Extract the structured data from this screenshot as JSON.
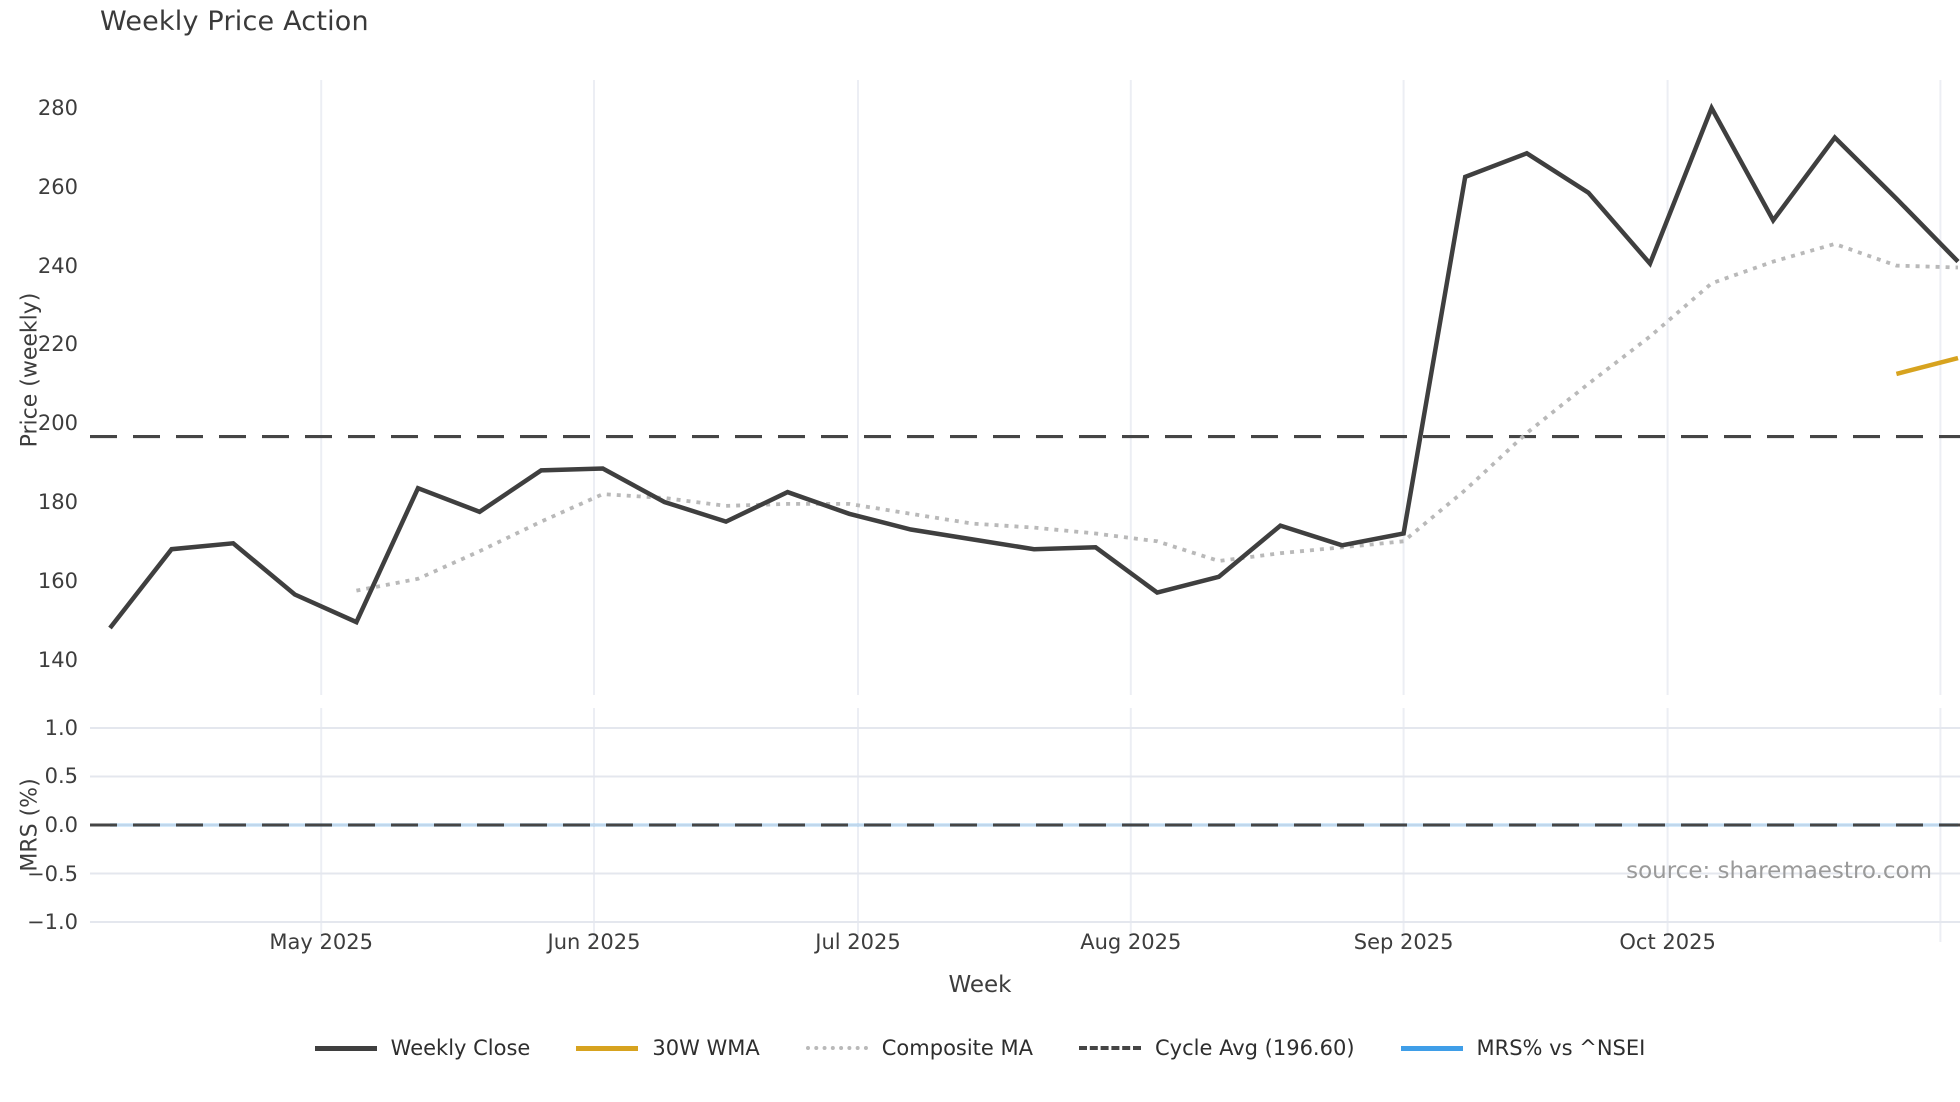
{
  "title": "Weekly Price Action",
  "source_note": "source: sharemaestro.com",
  "colors": {
    "close": "#3f3f3f",
    "wma": "#d7a31f",
    "composite": "#b9b9b9",
    "cycle": "#454545",
    "mrs": "#3f9ee8",
    "grid": "#eceef4",
    "grid_h": "#e4e7ee",
    "text": "#3a3a3a"
  },
  "legend": [
    {
      "label": "Weekly Close",
      "swatch": "solid",
      "color_key": "close"
    },
    {
      "label": "30W WMA",
      "swatch": "solid",
      "color_key": "wma"
    },
    {
      "label": "Composite MA",
      "swatch": "dotted",
      "color_key": "composite"
    },
    {
      "label": "Cycle Avg (196.60)",
      "swatch": "dashed",
      "color_key": "cycle"
    },
    {
      "label": "MRS% vs ^NSEI",
      "swatch": "solid",
      "color_key": "mrs"
    }
  ],
  "chart_data": [
    {
      "type": "line",
      "title": "Weekly Price Action",
      "xlabel": "Week",
      "ylabel": "Price (weekly)",
      "ylim": [
        131,
        287.1
      ],
      "grid": "vertical-months",
      "legend_position": "bottom",
      "ytick_values": [
        140,
        160,
        180,
        200,
        220,
        240,
        260,
        280
      ],
      "ytick_labels": [
        "140",
        "160",
        "180",
        "200",
        "220",
        "240",
        "260",
        "280"
      ],
      "x_months": [
        {
          "label": "May 2025",
          "date": "2025-05-01"
        },
        {
          "label": "Jun 2025",
          "date": "2025-06-01"
        },
        {
          "label": "Jul 2025",
          "date": "2025-07-01"
        },
        {
          "label": "Aug 2025",
          "date": "2025-08-01"
        },
        {
          "label": "Sep 2025",
          "date": "2025-09-01"
        },
        {
          "label": "Oct 2025",
          "date": "2025-10-01"
        },
        {
          "label": "",
          "date": "2025-11-01"
        }
      ],
      "x": [
        "2025-04-07",
        "2025-04-14",
        "2025-04-21",
        "2025-04-28",
        "2025-05-05",
        "2025-05-12",
        "2025-05-19",
        "2025-05-26",
        "2025-06-02",
        "2025-06-09",
        "2025-06-16",
        "2025-06-23",
        "2025-06-30",
        "2025-07-07",
        "2025-07-14",
        "2025-07-21",
        "2025-07-28",
        "2025-08-04",
        "2025-08-11",
        "2025-08-18",
        "2025-08-25",
        "2025-09-01",
        "2025-09-08",
        "2025-09-15",
        "2025-09-22",
        "2025-09-29",
        "2025-10-06",
        "2025-10-13",
        "2025-10-20",
        "2025-10-27",
        "2025-11-03"
      ],
      "series": [
        {
          "name": "Weekly Close",
          "style": "solid",
          "color_key": "close",
          "width": 4.5,
          "values": [
            148,
            168,
            169.5,
            156.5,
            149.5,
            183.5,
            177.5,
            188,
            188.5,
            180,
            175,
            182.5,
            177,
            173,
            170.5,
            168,
            168.5,
            157,
            161,
            174,
            169,
            172,
            262.5,
            268.5,
            258.5,
            240.5,
            280,
            251.5,
            272.5,
            257,
            241
          ]
        },
        {
          "name": "30W WMA",
          "style": "solid",
          "color_key": "wma",
          "width": 4.5,
          "values": [
            null,
            null,
            null,
            null,
            null,
            null,
            null,
            null,
            null,
            null,
            null,
            null,
            null,
            null,
            null,
            null,
            null,
            null,
            null,
            null,
            null,
            null,
            null,
            null,
            null,
            null,
            null,
            null,
            null,
            212.5,
            216.5
          ]
        },
        {
          "name": "Composite MA",
          "style": "dotted",
          "color_key": "composite",
          "width": 3.8,
          "values": [
            null,
            null,
            null,
            null,
            157.5,
            160.5,
            167.5,
            175,
            182,
            181,
            179,
            179.5,
            179.5,
            177,
            174.5,
            173.5,
            172,
            170,
            165,
            167,
            168.5,
            170,
            183,
            197.5,
            210,
            222,
            235.5,
            241,
            245.5,
            240,
            239.5
          ]
        },
        {
          "name": "Cycle Avg (196.60)",
          "style": "dashed",
          "color_key": "cycle",
          "width": 3.2,
          "constant": 196.6
        }
      ]
    },
    {
      "type": "line",
      "xlabel": "Week",
      "ylabel": "MRS (%)",
      "ylim": [
        -1.206,
        1.206
      ],
      "grid": "horizontal-and-vertical",
      "ytick_values": [
        1.0,
        0.5,
        0.0,
        -0.5,
        -1.0
      ],
      "ytick_labels": [
        "1.0",
        "0.5",
        "0.0",
        "−0.5",
        "−1.0"
      ],
      "series": [
        {
          "name": "MRS% vs ^NSEI",
          "style": "solid",
          "color_key": "mrs",
          "width": 4,
          "opacity": 0.22,
          "values": [
            0,
            0,
            0,
            0,
            0,
            0,
            0,
            0,
            0,
            0,
            0,
            0,
            0,
            0,
            0,
            0,
            0,
            0,
            0,
            0,
            0,
            0,
            0,
            0,
            0,
            0,
            0,
            0,
            0,
            0,
            0
          ]
        },
        {
          "name": "Zero line",
          "style": "dashed",
          "color_key": "cycle",
          "width": 3,
          "constant": 0
        }
      ]
    }
  ]
}
